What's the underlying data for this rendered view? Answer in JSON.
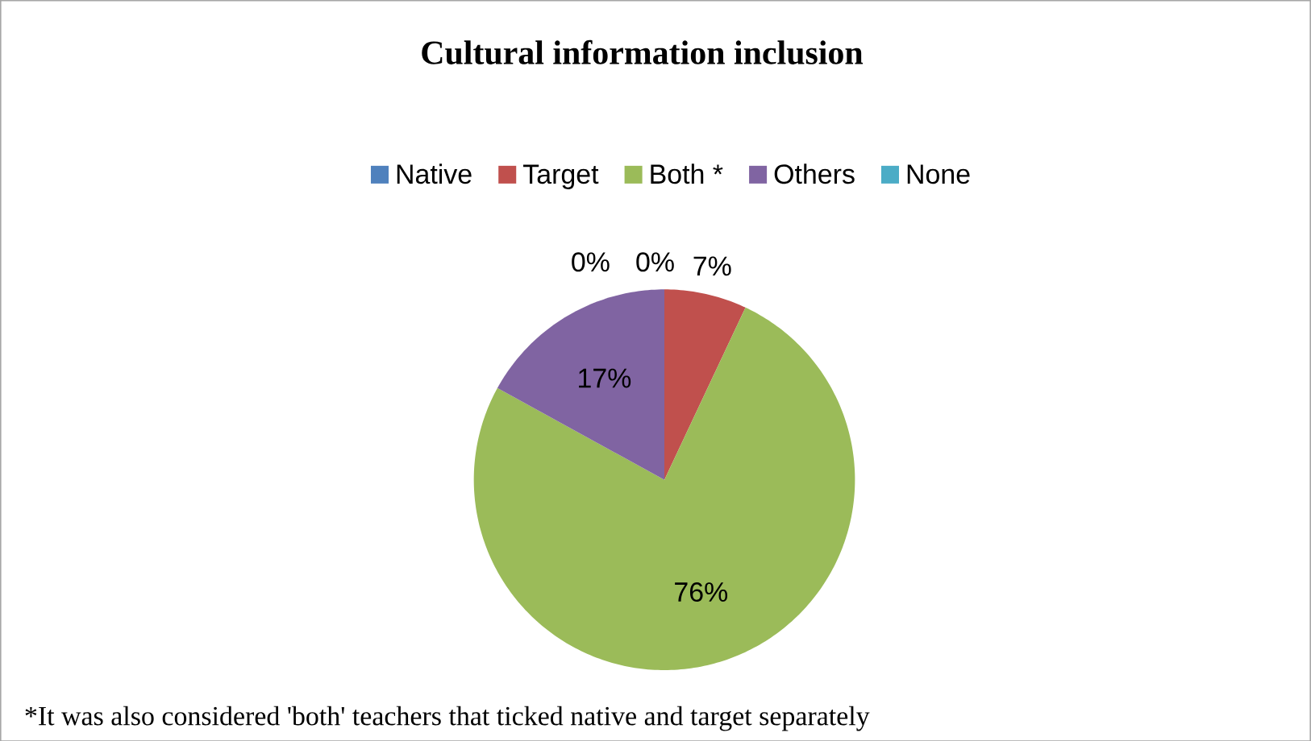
{
  "chart_data": {
    "type": "pie",
    "title": "Cultural information inclusion",
    "categories": [
      "Native",
      "Target",
      "Both *",
      "Others",
      "None"
    ],
    "values": [
      0,
      7,
      76,
      17,
      0
    ],
    "value_labels": [
      "0%",
      "7%",
      "76%",
      "17%",
      "0%"
    ],
    "colors": [
      "#4f81bd",
      "#c0504d",
      "#9bbb59",
      "#8064a2",
      "#4bacc6"
    ],
    "legend": "top",
    "annotations": [
      "*It was also considered 'both' teachers that ticked native and target separately"
    ]
  }
}
